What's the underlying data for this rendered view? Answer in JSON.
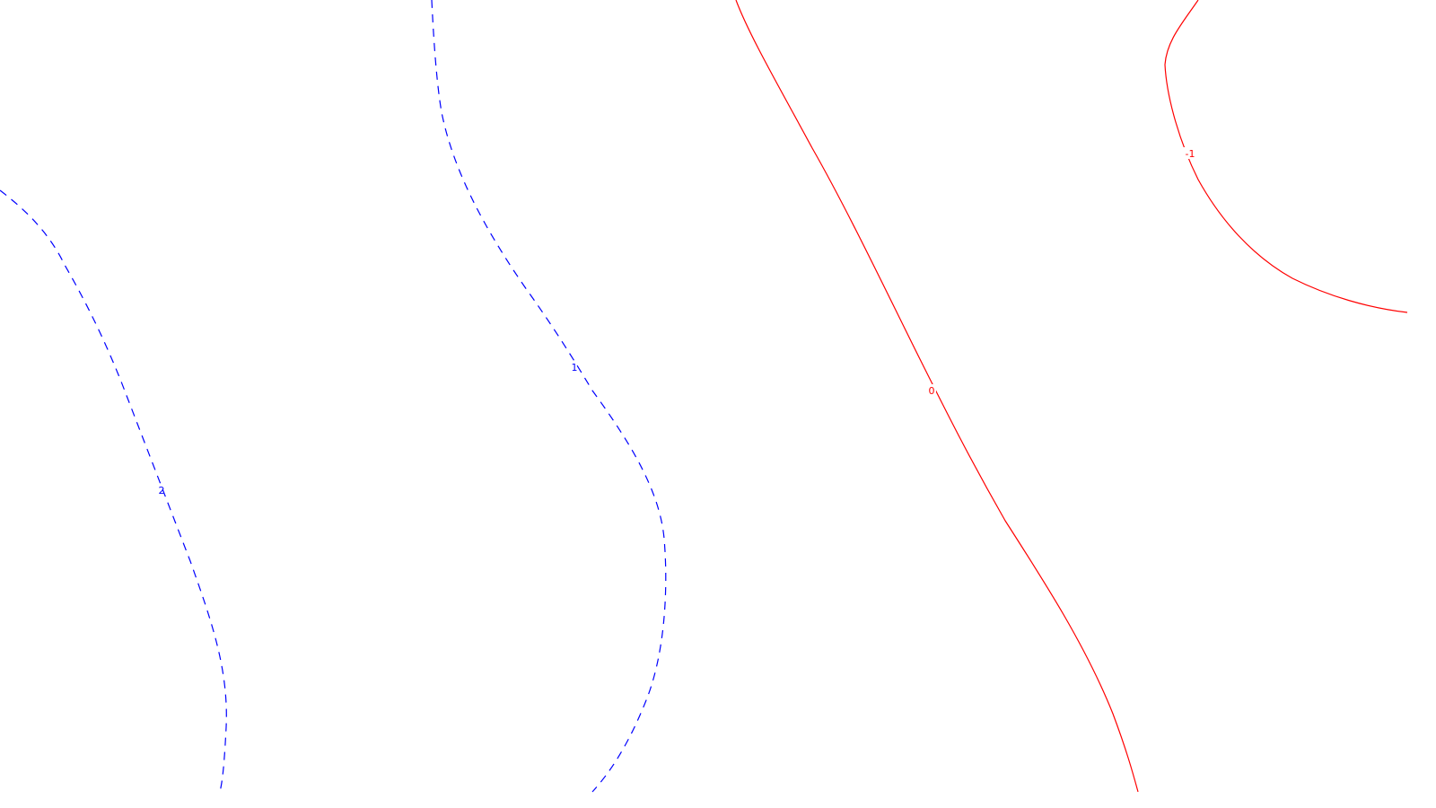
{
  "map": {
    "type": "contour-map",
    "colors": {
      "background": "#ffffff",
      "positive": "#0000ff",
      "zero": "#ff0000",
      "negative": "#ff0000"
    },
    "contours": [
      {
        "id": "contour-2",
        "label": "2",
        "style": "dashed",
        "color": "#0000ff"
      },
      {
        "id": "contour-1",
        "label": "1",
        "style": "dashed",
        "color": "#0000ff"
      },
      {
        "id": "contour-0",
        "label": "0",
        "style": "solid",
        "color": "#ff0000"
      },
      {
        "id": "contour-neg1",
        "label": "-1",
        "style": "solid",
        "color": "#ff0000"
      }
    ]
  }
}
